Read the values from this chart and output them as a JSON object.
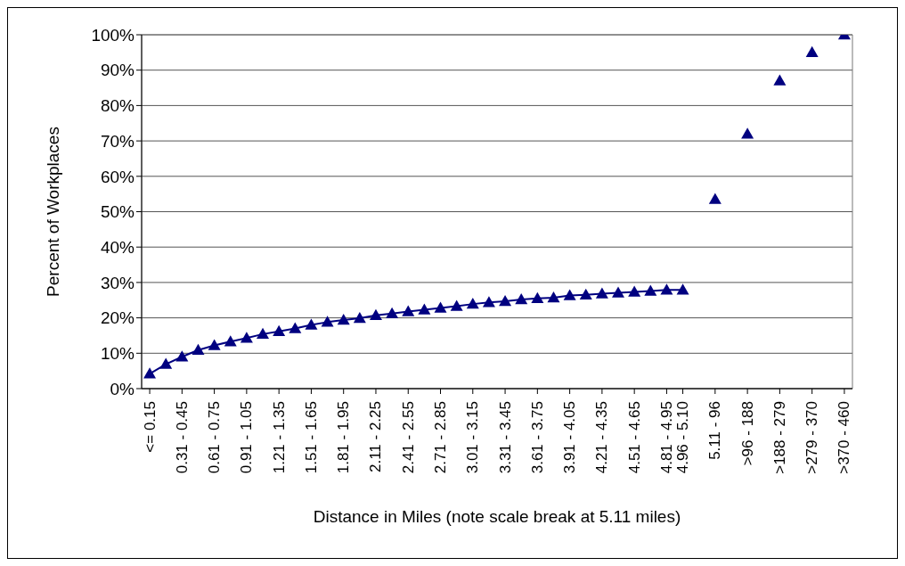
{
  "chart_data": {
    "type": "line",
    "xlabel": "Distance in Miles (note scale break at 5.11 miles)",
    "ylabel": "Percent of Workplaces",
    "categories": [
      "<= 0.15",
      null,
      "0.31 - 0.45",
      null,
      "0.61 - 0.75",
      null,
      "0.91 - 1.05",
      null,
      "1.21 - 1.35",
      null,
      "1.51 - 1.65",
      null,
      "1.81 - 1.95",
      null,
      "2.11 - 2.25",
      null,
      "2.41 - 2.55",
      null,
      "2.71 - 2.85",
      null,
      "3.01 - 3.15",
      null,
      "3.31 - 3.45",
      null,
      "3.61 - 3.75",
      null,
      "3.91 - 4.05",
      null,
      "4.21 - 4.35",
      null,
      "4.51 - 4.65",
      null,
      "4.81 - 4.95",
      "4.96 - 5.10",
      null,
      "5.11 - 96",
      null,
      ">96 - 188",
      null,
      ">188 - 279",
      null,
      ">279 - 370",
      null,
      ">370 - 460"
    ],
    "series": [
      {
        "color": "#000080",
        "values": [
          4.2,
          6.9,
          9.0,
          10.9,
          12.2,
          13.3,
          14.3,
          15.4,
          16.2,
          17.0,
          18.0,
          18.8,
          19.4,
          19.9,
          20.7,
          21.2,
          21.8,
          22.3,
          22.8,
          23.3,
          23.9,
          24.4,
          24.7,
          25.2,
          25.5,
          25.7,
          26.3,
          26.5,
          26.8,
          27.1,
          27.3,
          27.6,
          27.9,
          27.9,
          null,
          null,
          null,
          null,
          null,
          null,
          null,
          null,
          null,
          null
        ]
      },
      {
        "type": "scatter",
        "color": "#000080",
        "values": [
          null,
          null,
          null,
          null,
          null,
          null,
          null,
          null,
          null,
          null,
          null,
          null,
          null,
          null,
          null,
          null,
          null,
          null,
          null,
          null,
          null,
          null,
          null,
          null,
          null,
          null,
          null,
          null,
          null,
          null,
          null,
          null,
          null,
          null,
          null,
          53.5,
          null,
          72,
          null,
          87,
          null,
          95,
          null,
          100
        ]
      }
    ],
    "ylim": [
      0,
      100
    ],
    "yticks": [
      {
        "value": 0,
        "label": "0%"
      },
      {
        "value": 10,
        "label": "10%"
      },
      {
        "value": 20,
        "label": "20%"
      },
      {
        "value": 30,
        "label": "30%"
      },
      {
        "value": 40,
        "label": "40%"
      },
      {
        "value": 50,
        "label": "50%"
      },
      {
        "value": 60,
        "label": "60%"
      },
      {
        "value": 70,
        "label": "70%"
      },
      {
        "value": 80,
        "label": "80%"
      },
      {
        "value": 90,
        "label": "90%"
      },
      {
        "value": 100,
        "label": "100%"
      }
    ],
    "grid": "y",
    "marker": "triangle",
    "line_style": "solid"
  }
}
